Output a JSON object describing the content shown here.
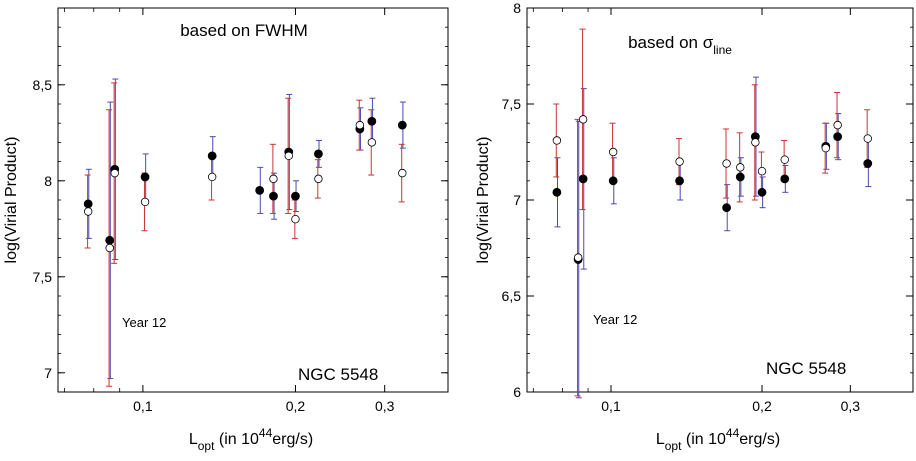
{
  "chart_data": [
    {
      "type": "scatter",
      "title": "based on FWHM",
      "annotation_year": "Year 12",
      "annotation_object": "NGC 5548",
      "ylabel": "log(Virial Product)",
      "xlabel": {
        "main": "L",
        "sub": "opt",
        "rest_before_sup": " (in 10",
        "sup": "44",
        "rest_after_sup": "erg/s)"
      },
      "x_scale": "log",
      "xlim": [
        0.068,
        0.4
      ],
      "ylim": [
        6.9,
        8.9
      ],
      "x_ticks": [
        {
          "value": 0.1,
          "label": "0,1"
        },
        {
          "value": 0.2,
          "label": "0,2"
        },
        {
          "value": 0.3,
          "label": "0,3"
        }
      ],
      "x_minor_ticks": [
        0.07,
        0.08,
        0.09,
        0.4
      ],
      "y_ticks": [
        {
          "value": 7.0,
          "label": "7"
        },
        {
          "value": 7.5,
          "label": "7,5"
        },
        {
          "value": 8.0,
          "label": "8"
        },
        {
          "value": 8.5,
          "label": "8,5"
        }
      ],
      "series": [
        {
          "marker": "filled",
          "errcolor": "#4a4ab0",
          "points": [
            {
              "x": 0.078,
              "y": 7.88,
              "err": 0.18
            },
            {
              "x": 0.086,
              "y": 7.69,
              "err": 0.72
            },
            {
              "x": 0.088,
              "y": 8.06,
              "err": 0.47
            },
            {
              "x": 0.101,
              "y": 8.02,
              "err": 0.12
            },
            {
              "x": 0.137,
              "y": 8.13,
              "err": 0.1
            },
            {
              "x": 0.17,
              "y": 7.95,
              "err": 0.12
            },
            {
              "x": 0.181,
              "y": 7.92,
              "err": 0.12
            },
            {
              "x": 0.194,
              "y": 8.15,
              "err": 0.3
            },
            {
              "x": 0.2,
              "y": 7.92,
              "err": 0.08
            },
            {
              "x": 0.222,
              "y": 8.14,
              "err": 0.07
            },
            {
              "x": 0.268,
              "y": 8.27,
              "err": 0.11
            },
            {
              "x": 0.283,
              "y": 8.31,
              "err": 0.12
            },
            {
              "x": 0.325,
              "y": 8.29,
              "err": 0.12
            }
          ]
        },
        {
          "marker": "open",
          "errcolor": "#cc3333",
          "points": [
            {
              "x": 0.078,
              "y": 7.84,
              "err": 0.19
            },
            {
              "x": 0.086,
              "y": 7.65,
              "err": 0.72
            },
            {
              "x": 0.088,
              "y": 8.04,
              "err": 0.47
            },
            {
              "x": 0.101,
              "y": 7.89,
              "err": 0.15
            },
            {
              "x": 0.137,
              "y": 8.02,
              "err": 0.12
            },
            {
              "x": 0.181,
              "y": 8.01,
              "err": 0.18
            },
            {
              "x": 0.194,
              "y": 8.13,
              "err": 0.3
            },
            {
              "x": 0.2,
              "y": 7.8,
              "err": 0.1
            },
            {
              "x": 0.222,
              "y": 8.01,
              "err": 0.1
            },
            {
              "x": 0.268,
              "y": 8.29,
              "err": 0.13
            },
            {
              "x": 0.283,
              "y": 8.2,
              "err": 0.17
            },
            {
              "x": 0.325,
              "y": 8.04,
              "err": 0.15
            }
          ]
        }
      ]
    },
    {
      "type": "scatter",
      "title": "based on σ",
      "title_sub": "line",
      "annotation_year": "Year 12",
      "annotation_object": "NGC 5548",
      "ylabel": "log(Virial Product)",
      "xlabel": {
        "main": "L",
        "sub": "opt",
        "rest_before_sup": " (in 10",
        "sup": "44",
        "rest_after_sup": "erg/s)"
      },
      "x_scale": "log",
      "xlim": [
        0.068,
        0.4
      ],
      "ylim": [
        6.0,
        8.0
      ],
      "x_ticks": [
        {
          "value": 0.1,
          "label": "0,1"
        },
        {
          "value": 0.2,
          "label": "0,2"
        },
        {
          "value": 0.3,
          "label": "0,3"
        }
      ],
      "x_minor_ticks": [
        0.07,
        0.08,
        0.09,
        0.4
      ],
      "y_ticks": [
        {
          "value": 6.0,
          "label": "6"
        },
        {
          "value": 6.5,
          "label": "6,5"
        },
        {
          "value": 7.0,
          "label": "7"
        },
        {
          "value": 7.5,
          "label": "7,5"
        },
        {
          "value": 8.0,
          "label": "8"
        }
      ],
      "series": [
        {
          "marker": "filled",
          "errcolor": "#4a4ab0",
          "points": [
            {
              "x": 0.078,
              "y": 7.04,
              "err": 0.18
            },
            {
              "x": 0.086,
              "y": 6.69,
              "err": 0.72
            },
            {
              "x": 0.088,
              "y": 7.11,
              "err": 0.47
            },
            {
              "x": 0.101,
              "y": 7.1,
              "err": 0.12
            },
            {
              "x": 0.137,
              "y": 7.1,
              "err": 0.1
            },
            {
              "x": 0.17,
              "y": 6.96,
              "err": 0.12
            },
            {
              "x": 0.181,
              "y": 7.12,
              "err": 0.1
            },
            {
              "x": 0.194,
              "y": 7.33,
              "err": 0.31
            },
            {
              "x": 0.2,
              "y": 7.04,
              "err": 0.08
            },
            {
              "x": 0.222,
              "y": 7.11,
              "err": 0.07
            },
            {
              "x": 0.268,
              "y": 7.28,
              "err": 0.12
            },
            {
              "x": 0.283,
              "y": 7.33,
              "err": 0.12
            },
            {
              "x": 0.325,
              "y": 7.19,
              "err": 0.12
            }
          ]
        },
        {
          "marker": "open",
          "errcolor": "#cc3333",
          "points": [
            {
              "x": 0.078,
              "y": 7.31,
              "err": 0.19
            },
            {
              "x": 0.086,
              "y": 6.7,
              "err": 0.72
            },
            {
              "x": 0.088,
              "y": 7.42,
              "err": 0.47
            },
            {
              "x": 0.101,
              "y": 7.25,
              "err": 0.15
            },
            {
              "x": 0.137,
              "y": 7.2,
              "err": 0.12
            },
            {
              "x": 0.17,
              "y": 7.19,
              "err": 0.18
            },
            {
              "x": 0.181,
              "y": 7.17,
              "err": 0.18
            },
            {
              "x": 0.194,
              "y": 7.3,
              "err": 0.3
            },
            {
              "x": 0.2,
              "y": 7.15,
              "err": 0.1
            },
            {
              "x": 0.222,
              "y": 7.21,
              "err": 0.1
            },
            {
              "x": 0.268,
              "y": 7.27,
              "err": 0.13
            },
            {
              "x": 0.283,
              "y": 7.39,
              "err": 0.17
            },
            {
              "x": 0.325,
              "y": 7.32,
              "err": 0.15
            }
          ]
        }
      ]
    }
  ]
}
